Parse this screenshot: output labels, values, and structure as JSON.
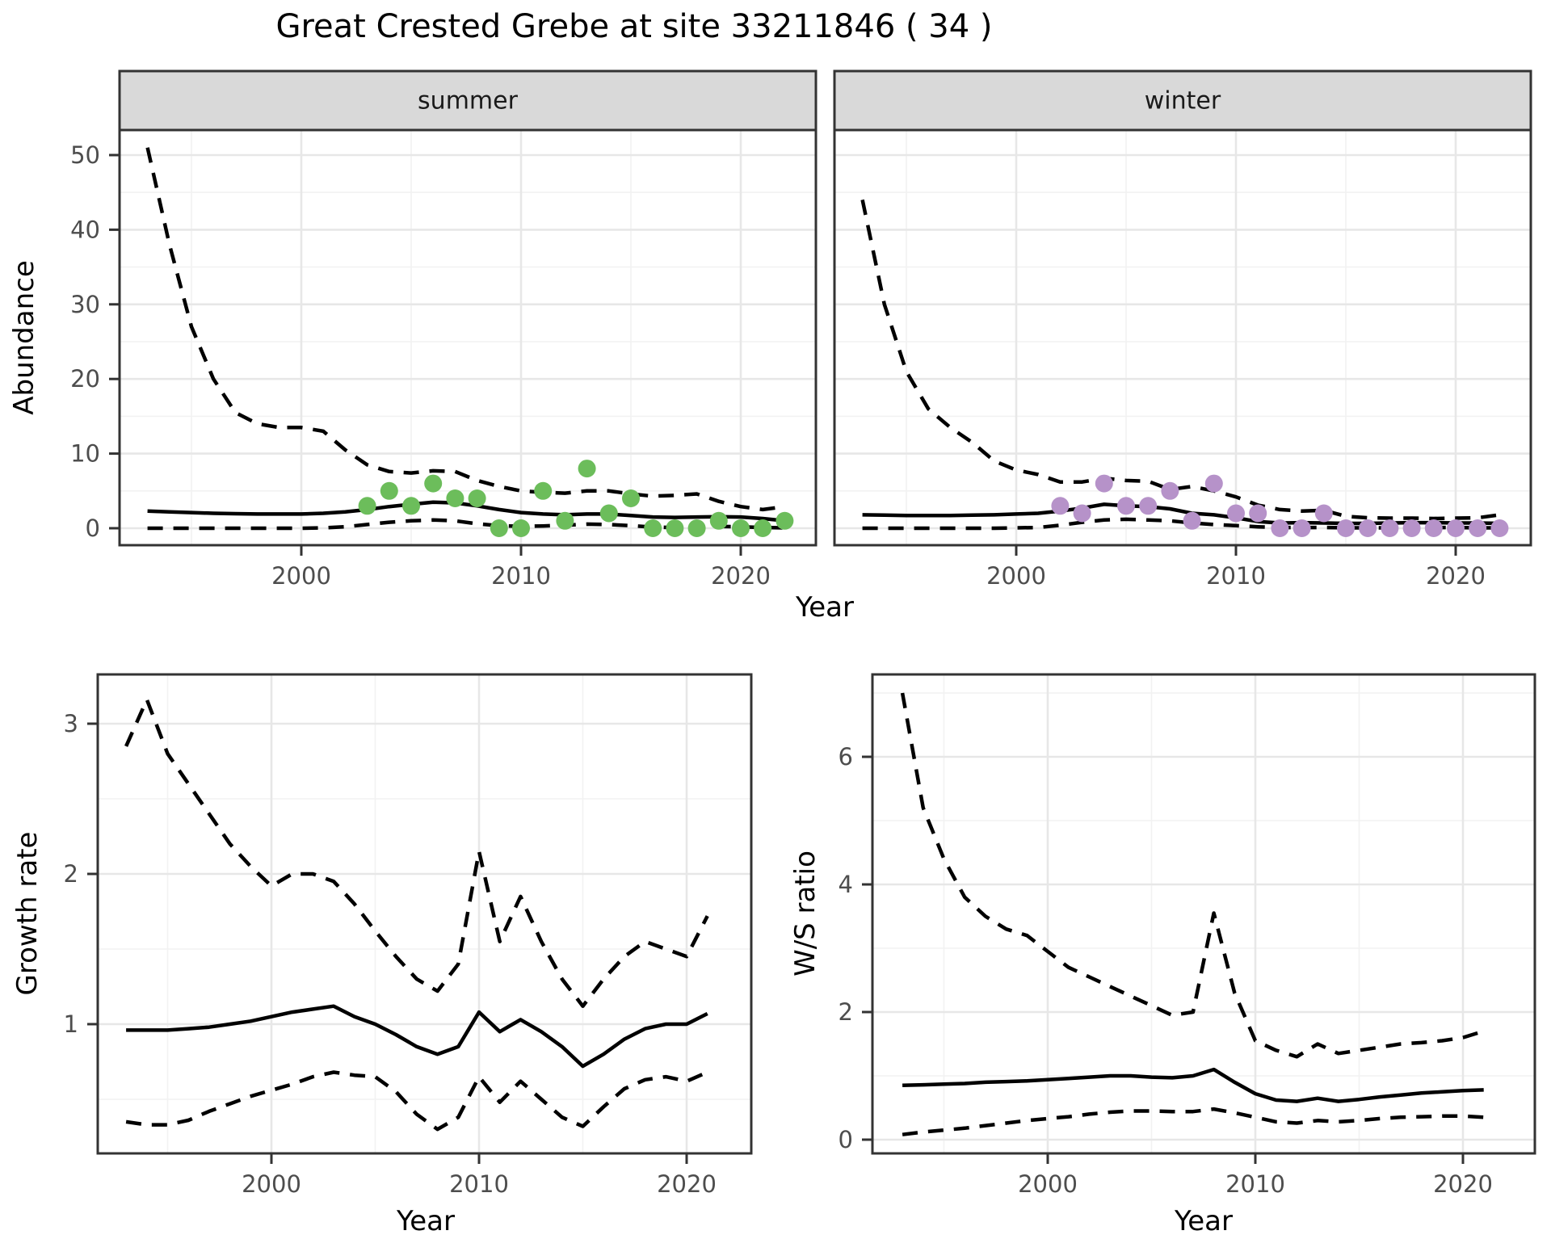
{
  "title": "Great Crested Grebe at site 33211846 ( 34 )",
  "colors": {
    "summer_points": "#6cbd5b",
    "winter_points": "#b692c9",
    "line": "#000000",
    "strip_fill": "#d9d9d9",
    "panel_border": "#333333",
    "grid_major": "#e7e7e7",
    "grid_minor": "#f2f2f2",
    "tick_text": "#4d4d4d"
  },
  "chart_data": [
    {
      "type": "line",
      "name": "abundance-summer",
      "facet_label": "summer",
      "xlabel": "Year",
      "ylabel": "Abundance",
      "x_ticks": [
        2000,
        2010,
        2020
      ],
      "y_ticks": [
        0,
        10,
        20,
        30,
        40,
        50
      ],
      "xlim": [
        1991.7,
        2023.4
      ],
      "ylim": [
        -2.3,
        53.4
      ],
      "grid": true,
      "legend_position": "none",
      "years": [
        1993,
        1994,
        1995,
        1996,
        1997,
        1998,
        1999,
        2000,
        2001,
        2002,
        2003,
        2004,
        2005,
        2006,
        2007,
        2008,
        2009,
        2010,
        2011,
        2012,
        2013,
        2014,
        2015,
        2016,
        2017,
        2018,
        2019,
        2020,
        2021,
        2022
      ],
      "series": [
        {
          "name": "mean",
          "style": "solid",
          "values": [
            2.3,
            2.2,
            2.1,
            2.0,
            1.95,
            1.9,
            1.9,
            1.9,
            2.0,
            2.2,
            2.5,
            2.9,
            3.2,
            3.5,
            3.4,
            3.0,
            2.5,
            2.1,
            1.9,
            1.8,
            1.9,
            1.9,
            1.7,
            1.5,
            1.45,
            1.5,
            1.55,
            1.5,
            1.3,
            1.0
          ]
        },
        {
          "name": "lower95",
          "style": "dashed",
          "values": [
            0,
            0,
            0,
            0,
            0,
            0,
            0,
            0,
            0.05,
            0.2,
            0.5,
            0.8,
            1.0,
            1.1,
            1.0,
            0.6,
            0.35,
            0.25,
            0.3,
            0.4,
            0.55,
            0.5,
            0.35,
            0.15,
            0.1,
            0.15,
            0.25,
            0.2,
            0.1,
            0.05
          ]
        },
        {
          "name": "upper95",
          "style": "dashed",
          "values": [
            51,
            38,
            27,
            20,
            15.5,
            14,
            13.5,
            13.5,
            13,
            10.5,
            8.5,
            7.6,
            7.4,
            7.7,
            7.6,
            6.4,
            5.6,
            5.0,
            4.8,
            4.7,
            5.0,
            5.0,
            4.6,
            4.3,
            4.4,
            4.6,
            3.6,
            2.9,
            2.5,
            2.9
          ]
        }
      ],
      "points": {
        "color_key": "summer_points",
        "years": [
          2003,
          2004,
          2005,
          2006,
          2007,
          2008,
          2009,
          2010,
          2011,
          2012,
          2013,
          2014,
          2015,
          2016,
          2017,
          2018,
          2019,
          2020,
          2021,
          2022
        ],
        "values": [
          3,
          5,
          3,
          6,
          4,
          4,
          0,
          0,
          5,
          1,
          8,
          2,
          4,
          0,
          0,
          0,
          1,
          0,
          0,
          1
        ]
      }
    },
    {
      "type": "line",
      "name": "abundance-winter",
      "facet_label": "winter",
      "xlabel": "Year",
      "ylabel": "Abundance",
      "x_ticks": [
        2000,
        2010,
        2020
      ],
      "y_ticks": [
        0,
        10,
        20,
        30,
        40,
        50
      ],
      "xlim": [
        1991.7,
        2023.4
      ],
      "ylim": [
        -2.3,
        53.4
      ],
      "grid": true,
      "legend_position": "none",
      "years": [
        1993,
        1994,
        1995,
        1996,
        1997,
        1998,
        1999,
        2000,
        2001,
        2002,
        2003,
        2004,
        2005,
        2006,
        2007,
        2008,
        2009,
        2010,
        2011,
        2012,
        2013,
        2014,
        2015,
        2016,
        2017,
        2018,
        2019,
        2020,
        2021,
        2022
      ],
      "series": [
        {
          "name": "mean",
          "style": "solid",
          "values": [
            1.8,
            1.75,
            1.7,
            1.7,
            1.7,
            1.75,
            1.8,
            1.9,
            2.0,
            2.3,
            2.7,
            3.2,
            3.0,
            2.9,
            2.6,
            2.0,
            1.8,
            1.4,
            0.9,
            0.7,
            0.75,
            0.7,
            0.65,
            0.65,
            0.7,
            0.75,
            0.75,
            0.7,
            0.7,
            0.65
          ]
        },
        {
          "name": "lower95",
          "style": "dashed",
          "values": [
            0,
            0,
            0,
            0,
            0,
            0,
            0,
            0.05,
            0.1,
            0.4,
            0.8,
            1.1,
            1.2,
            1.1,
            1.0,
            0.7,
            0.5,
            0.35,
            0.2,
            0.1,
            0.1,
            0.1,
            0.05,
            0.05,
            0.05,
            0.05,
            0.1,
            0.1,
            0.05,
            0.05
          ]
        },
        {
          "name": "upper95",
          "style": "dashed",
          "values": [
            44,
            30,
            21,
            16,
            13.5,
            11.5,
            9.0,
            7.8,
            7.2,
            6.2,
            6.2,
            6.7,
            6.4,
            6.3,
            5.2,
            5.6,
            5.0,
            4.2,
            3.1,
            2.5,
            2.3,
            2.4,
            1.6,
            1.4,
            1.35,
            1.35,
            1.3,
            1.35,
            1.4,
            1.8
          ]
        }
      ],
      "points": {
        "color_key": "winter_points",
        "years": [
          2002,
          2003,
          2004,
          2005,
          2006,
          2007,
          2008,
          2009,
          2010,
          2011,
          2012,
          2013,
          2014,
          2015,
          2016,
          2017,
          2018,
          2019,
          2020,
          2021,
          2022
        ],
        "values": [
          3,
          2,
          6,
          3,
          3,
          5,
          1,
          6,
          2,
          2,
          0,
          0,
          2,
          0,
          0,
          0,
          0,
          0,
          0,
          0,
          0
        ]
      }
    },
    {
      "type": "line",
      "name": "growth-rate",
      "facet_label": "",
      "xlabel": "Year",
      "ylabel": "Growth rate",
      "x_ticks": [
        2000,
        2010,
        2020
      ],
      "y_ticks": [
        1,
        2,
        3
      ],
      "xlim": [
        1991.6,
        2023.1
      ],
      "ylim": [
        0.14,
        3.33
      ],
      "grid": true,
      "legend_position": "none",
      "years": [
        1993,
        1994,
        1995,
        1996,
        1997,
        1998,
        1999,
        2000,
        2001,
        2002,
        2003,
        2004,
        2005,
        2006,
        2007,
        2008,
        2009,
        2010,
        2011,
        2012,
        2013,
        2014,
        2015,
        2016,
        2017,
        2018,
        2019,
        2020,
        2021
      ],
      "series": [
        {
          "name": "mean",
          "style": "solid",
          "values": [
            0.96,
            0.96,
            0.96,
            0.97,
            0.98,
            1.0,
            1.02,
            1.05,
            1.08,
            1.1,
            1.12,
            1.05,
            1.0,
            0.93,
            0.85,
            0.8,
            0.85,
            1.08,
            0.95,
            1.03,
            0.95,
            0.85,
            0.72,
            0.8,
            0.9,
            0.97,
            1.0,
            1.0,
            1.07
          ]
        },
        {
          "name": "lower95",
          "style": "dashed",
          "values": [
            0.35,
            0.33,
            0.33,
            0.36,
            0.42,
            0.47,
            0.52,
            0.56,
            0.6,
            0.65,
            0.68,
            0.66,
            0.65,
            0.55,
            0.4,
            0.3,
            0.38,
            0.65,
            0.48,
            0.62,
            0.5,
            0.38,
            0.32,
            0.45,
            0.57,
            0.63,
            0.65,
            0.62,
            0.68
          ]
        },
        {
          "name": "upper95",
          "style": "dashed",
          "values": [
            2.85,
            3.16,
            2.8,
            2.6,
            2.4,
            2.2,
            2.05,
            1.92,
            2.0,
            2.0,
            1.95,
            1.8,
            1.62,
            1.45,
            1.3,
            1.22,
            1.4,
            2.15,
            1.55,
            1.85,
            1.55,
            1.3,
            1.12,
            1.3,
            1.45,
            1.55,
            1.5,
            1.45,
            1.72
          ]
        }
      ],
      "points": null
    },
    {
      "type": "line",
      "name": "ws-ratio",
      "facet_label": "",
      "xlabel": "Year",
      "ylabel": "W/S ratio",
      "x_ticks": [
        2000,
        2010,
        2020
      ],
      "y_ticks": [
        0,
        2,
        4,
        6
      ],
      "xlim": [
        1991.6,
        2023.5
      ],
      "ylim": [
        -0.22,
        7.29
      ],
      "grid": true,
      "legend_position": "none",
      "years": [
        1993,
        1994,
        1995,
        1996,
        1997,
        1998,
        1999,
        2000,
        2001,
        2002,
        2003,
        2004,
        2005,
        2006,
        2007,
        2008,
        2009,
        2010,
        2011,
        2012,
        2013,
        2014,
        2015,
        2016,
        2017,
        2018,
        2019,
        2020,
        2021
      ],
      "series": [
        {
          "name": "mean",
          "style": "solid",
          "values": [
            0.85,
            0.86,
            0.87,
            0.88,
            0.9,
            0.91,
            0.92,
            0.94,
            0.96,
            0.98,
            1.0,
            1.0,
            0.98,
            0.97,
            1.0,
            1.1,
            0.9,
            0.72,
            0.62,
            0.6,
            0.65,
            0.6,
            0.63,
            0.67,
            0.7,
            0.73,
            0.75,
            0.77,
            0.78
          ]
        },
        {
          "name": "lower95",
          "style": "dashed",
          "values": [
            0.08,
            0.12,
            0.15,
            0.18,
            0.22,
            0.26,
            0.3,
            0.33,
            0.36,
            0.4,
            0.43,
            0.45,
            0.45,
            0.44,
            0.44,
            0.48,
            0.42,
            0.35,
            0.28,
            0.26,
            0.3,
            0.28,
            0.3,
            0.33,
            0.35,
            0.36,
            0.37,
            0.37,
            0.35
          ]
        },
        {
          "name": "upper95",
          "style": "dashed",
          "values": [
            7.0,
            5.2,
            4.4,
            3.8,
            3.5,
            3.3,
            3.2,
            2.95,
            2.7,
            2.55,
            2.4,
            2.25,
            2.1,
            1.95,
            2.0,
            3.55,
            2.3,
            1.55,
            1.4,
            1.3,
            1.5,
            1.35,
            1.4,
            1.45,
            1.5,
            1.52,
            1.55,
            1.6,
            1.7
          ]
        }
      ],
      "points": null
    }
  ]
}
